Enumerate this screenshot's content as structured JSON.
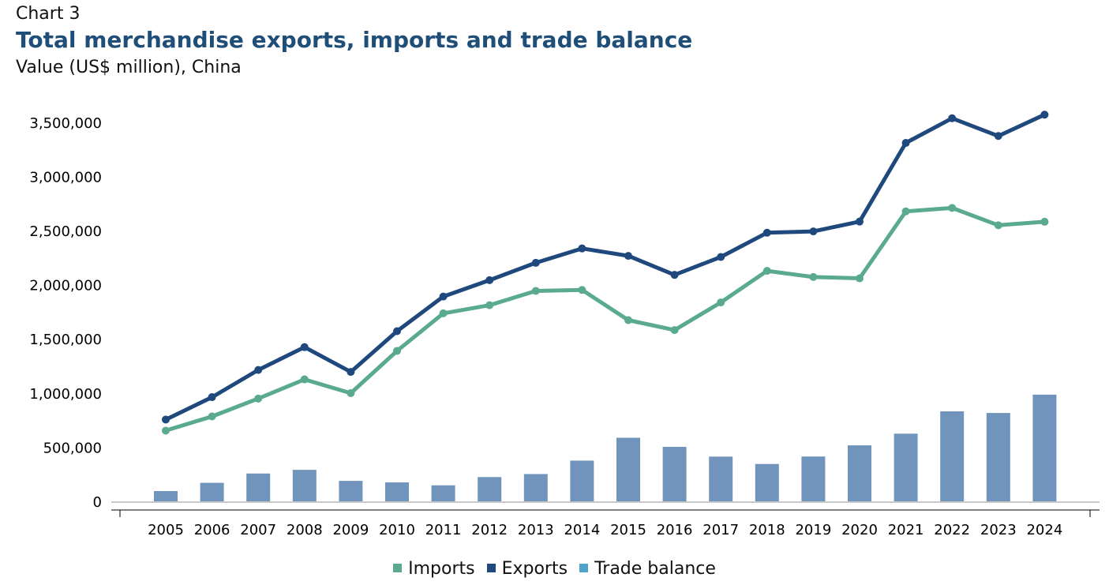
{
  "header": {
    "chart_label": "Chart 3",
    "title": "Total merchandise exports, imports and trade balance",
    "subtitle": "Value (US$ million), China"
  },
  "colors": {
    "imports": "#5aaa8e",
    "exports": "#1f497d",
    "trade_balance_bar": "#7094bb",
    "trade_balance_legend": "#4fa3cc",
    "axis": "#c8c8c8"
  },
  "chart_data": {
    "type": "bar+line",
    "categories": [
      "2005",
      "2006",
      "2007",
      "2008",
      "2009",
      "2010",
      "2011",
      "2012",
      "2013",
      "2014",
      "2015",
      "2016",
      "2017",
      "2018",
      "2019",
      "2020",
      "2021",
      "2022",
      "2023",
      "2024"
    ],
    "ylim": [
      0,
      3500000
    ],
    "yticks": [
      0,
      500000,
      1000000,
      1500000,
      2000000,
      2500000,
      3000000,
      3500000
    ],
    "ytick_labels": [
      "0",
      "500,000",
      "1,000,000",
      "1,500,000",
      "2,000,000",
      "2,500,000",
      "3,000,000",
      "3,500,000"
    ],
    "series": [
      {
        "name": "Imports",
        "type": "line",
        "values": [
          660000,
          791000,
          956000,
          1133000,
          1006000,
          1396000,
          1743000,
          1818000,
          1950000,
          1959000,
          1680000,
          1588000,
          1843000,
          2135000,
          2078000,
          2066000,
          2684000,
          2716000,
          2556000,
          2588000
        ]
      },
      {
        "name": "Exports",
        "type": "line",
        "values": [
          762000,
          969000,
          1220000,
          1431000,
          1202000,
          1578000,
          1898000,
          2049000,
          2209000,
          2342000,
          2273000,
          2098000,
          2263000,
          2487000,
          2499000,
          2590000,
          3316000,
          3544000,
          3380000,
          3577000
        ]
      },
      {
        "name": "Trade balance",
        "type": "bar",
        "values": [
          102000,
          178000,
          264000,
          298000,
          196000,
          182000,
          155000,
          231000,
          259000,
          383000,
          594000,
          510000,
          420000,
          352000,
          421000,
          524000,
          632000,
          838000,
          823000,
          992000
        ]
      }
    ],
    "legend": [
      "Imports",
      "Exports",
      "Trade balance"
    ],
    "legend_position": "bottom",
    "grid": false
  }
}
